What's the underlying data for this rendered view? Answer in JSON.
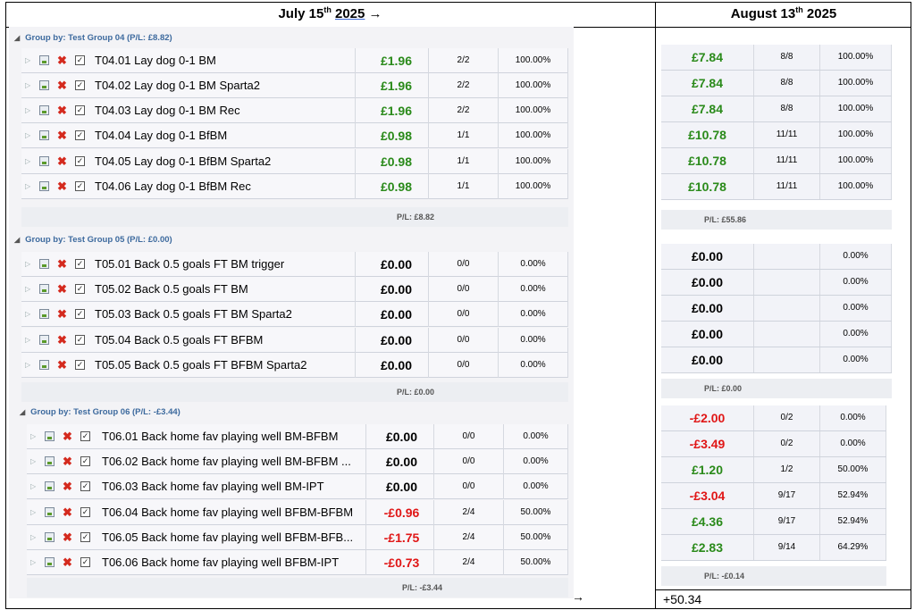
{
  "headers": {
    "left": {
      "month": "July 15",
      "sup": "th",
      "year": "2025",
      "arrow": "→"
    },
    "right": {
      "month": "August 13",
      "sup": "th",
      "year": "2025"
    }
  },
  "groups": [
    {
      "title": "Group by: Test Group 04 (P/L: £8.82)",
      "subtotal": "P/L: £8.82",
      "right_subtotal": "P/L: £55.86",
      "rows": [
        {
          "name": "T04.01 Lay dog 0-1 BM",
          "pl": "£1.96",
          "tone": "pos",
          "ratio": "2/2",
          "pct": "100.00%",
          "r_pl": "£7.84",
          "r_tone": "pos",
          "r_ratio": "8/8",
          "r_pct": "100.00%"
        },
        {
          "name": "T04.02 Lay dog 0-1 BM Sparta2",
          "pl": "£1.96",
          "tone": "pos",
          "ratio": "2/2",
          "pct": "100.00%",
          "r_pl": "£7.84",
          "r_tone": "pos",
          "r_ratio": "8/8",
          "r_pct": "100.00%"
        },
        {
          "name": "T04.03 Lay dog 0-1 BM Rec",
          "pl": "£1.96",
          "tone": "pos",
          "ratio": "2/2",
          "pct": "100.00%",
          "r_pl": "£7.84",
          "r_tone": "pos",
          "r_ratio": "8/8",
          "r_pct": "100.00%"
        },
        {
          "name": "T04.04 Lay dog 0-1 BfBM",
          "pl": "£0.98",
          "tone": "pos",
          "ratio": "1/1",
          "pct": "100.00%",
          "r_pl": "£10.78",
          "r_tone": "pos",
          "r_ratio": "11/11",
          "r_pct": "100.00%"
        },
        {
          "name": "T04.05 Lay dog 0-1 BfBM Sparta2",
          "pl": "£0.98",
          "tone": "pos",
          "ratio": "1/1",
          "pct": "100.00%",
          "r_pl": "£10.78",
          "r_tone": "pos",
          "r_ratio": "11/11",
          "r_pct": "100.00%"
        },
        {
          "name": "T04.06 Lay dog 0-1 BfBM Rec",
          "pl": "£0.98",
          "tone": "pos",
          "ratio": "1/1",
          "pct": "100.00%",
          "r_pl": "£10.78",
          "r_tone": "pos",
          "r_ratio": "11/11",
          "r_pct": "100.00%"
        }
      ]
    },
    {
      "title": "Group by: Test Group 05 (P/L: £0.00)",
      "subtotal": "P/L: £0.00",
      "right_subtotal": "P/L: £0.00",
      "rows": [
        {
          "name": "T05.01 Back 0.5 goals FT BM trigger",
          "pl": "£0.00",
          "tone": "zero",
          "ratio": "0/0",
          "pct": "0.00%",
          "r_pl": "£0.00",
          "r_tone": "zero",
          "r_ratio": "",
          "r_pct": "0.00%"
        },
        {
          "name": "T05.02 Back 0.5 goals FT BM",
          "pl": "£0.00",
          "tone": "zero",
          "ratio": "0/0",
          "pct": "0.00%",
          "r_pl": "£0.00",
          "r_tone": "zero",
          "r_ratio": "",
          "r_pct": "0.00%"
        },
        {
          "name": "T05.03 Back 0.5 goals FT BM Sparta2",
          "pl": "£0.00",
          "tone": "zero",
          "ratio": "0/0",
          "pct": "0.00%",
          "r_pl": "£0.00",
          "r_tone": "zero",
          "r_ratio": "",
          "r_pct": "0.00%"
        },
        {
          "name": "T05.04 Back 0.5 goals FT BFBM",
          "pl": "£0.00",
          "tone": "zero",
          "ratio": "0/0",
          "pct": "0.00%",
          "r_pl": "£0.00",
          "r_tone": "zero",
          "r_ratio": "",
          "r_pct": "0.00%"
        },
        {
          "name": "T05.05 Back 0.5 goals FT BFBM Sparta2",
          "pl": "£0.00",
          "tone": "zero",
          "ratio": "0/0",
          "pct": "0.00%",
          "r_pl": "£0.00",
          "r_tone": "zero",
          "r_ratio": "",
          "r_pct": "0.00%"
        }
      ]
    },
    {
      "title": "Group by: Test Group 06 (P/L: -£3.44)",
      "subtotal": "P/L: -£3.44",
      "right_subtotal": "P/L: -£0.14",
      "rows": [
        {
          "name": "T06.01 Back home fav playing well BM-BFBM",
          "pl": "£0.00",
          "tone": "zero",
          "ratio": "0/0",
          "pct": "0.00%",
          "r_pl": "-£2.00",
          "r_tone": "neg",
          "r_ratio": "0/2",
          "r_pct": "0.00%"
        },
        {
          "name": "T06.02 Back home fav playing well BM-BFBM ...",
          "pl": "£0.00",
          "tone": "zero",
          "ratio": "0/0",
          "pct": "0.00%",
          "r_pl": "-£3.49",
          "r_tone": "neg",
          "r_ratio": "0/2",
          "r_pct": "0.00%"
        },
        {
          "name": "T06.03 Back home fav playing well BM-IPT",
          "pl": "£0.00",
          "tone": "zero",
          "ratio": "0/0",
          "pct": "0.00%",
          "r_pl": "£1.20",
          "r_tone": "pos",
          "r_ratio": "1/2",
          "r_pct": "50.00%"
        },
        {
          "name": "T06.04 Back home fav playing well BFBM-BFBM",
          "pl": "-£0.96",
          "tone": "neg",
          "ratio": "2/4",
          "pct": "50.00%",
          "r_pl": "-£3.04",
          "r_tone": "neg",
          "r_ratio": "9/17",
          "r_pct": "52.94%"
        },
        {
          "name": "T06.05 Back home fav playing well BFBM-BFB...",
          "pl": "-£1.75",
          "tone": "neg",
          "ratio": "2/4",
          "pct": "50.00%",
          "r_pl": "£4.36",
          "r_tone": "pos",
          "r_ratio": "9/17",
          "r_pct": "52.94%"
        },
        {
          "name": "T06.06 Back home fav playing well BFBM-IPT",
          "pl": "-£0.73",
          "tone": "neg",
          "ratio": "2/4",
          "pct": "50.00%",
          "r_pl": "£2.83",
          "r_tone": "pos",
          "r_ratio": "9/14",
          "r_pct": "64.29%"
        }
      ]
    }
  ],
  "footer": {
    "arrow": "→",
    "total": "+50.34"
  },
  "colors": {
    "positive": "#2a8a1a",
    "negative": "#e01616",
    "group_title": "#3d6a9e"
  },
  "icons": [
    "expand-icon",
    "document-icon",
    "delete-icon",
    "checkbox-icon"
  ]
}
